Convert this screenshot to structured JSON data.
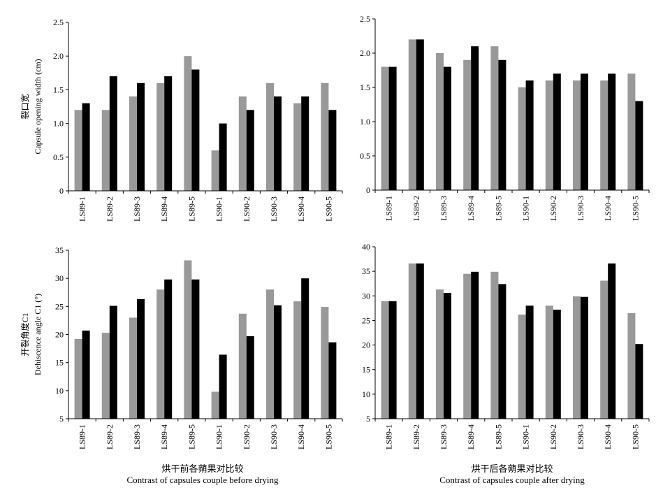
{
  "colors": {
    "series_a": "#999999",
    "series_b": "#000000",
    "axis": "#000000"
  },
  "chart_data": [
    {
      "type": "bar",
      "panel": "top-left",
      "ylabel_zh": "裂口宽",
      "ylabel_en": "Capsule opening width (cm)",
      "ylim": [
        0,
        2.5
      ],
      "yticks": [
        "0",
        "0.5",
        "1.0",
        "1.5",
        "2.0",
        "2.5"
      ],
      "categories": [
        "LS89-1",
        "LS89-2",
        "LS89-3",
        "LS89-4",
        "LS89-5",
        "LS90-1",
        "LS90-2",
        "LS90-3",
        "LS90-4",
        "LS90-5"
      ],
      "series": [
        {
          "values": [
            1.2,
            1.2,
            1.4,
            1.6,
            2.0,
            0.6,
            1.4,
            1.6,
            1.3,
            1.6
          ]
        },
        {
          "values": [
            1.3,
            1.7,
            1.6,
            1.7,
            1.8,
            1.0,
            1.2,
            1.4,
            1.4,
            1.2
          ]
        }
      ]
    },
    {
      "type": "bar",
      "panel": "top-right",
      "ylabel_zh": "",
      "ylabel_en": "",
      "ylim": [
        0,
        2.5
      ],
      "yticks": [
        "0",
        "0.5",
        "1.0",
        "1.5",
        "2.0",
        "2.5"
      ],
      "categories": [
        "LS89-1",
        "LS89-2",
        "LS89-3",
        "LS89-4",
        "LS89-5",
        "LS90-1",
        "LS90-2",
        "LS90-3",
        "LS90-4",
        "LS90-5"
      ],
      "series": [
        {
          "values": [
            1.8,
            2.2,
            2.0,
            1.9,
            2.1,
            1.5,
            1.6,
            1.6,
            1.6,
            1.7
          ]
        },
        {
          "values": [
            1.8,
            2.2,
            1.8,
            2.1,
            1.9,
            1.6,
            1.7,
            1.7,
            1.7,
            1.3
          ]
        }
      ]
    },
    {
      "type": "bar",
      "panel": "bottom-left",
      "ylabel_zh": "开裂角度C1",
      "ylabel_en": "Dehiscence angle C1 (°)",
      "ylim": [
        5,
        35
      ],
      "yticks": [
        "5",
        "10",
        "15",
        "20",
        "25",
        "30",
        "35"
      ],
      "categories": [
        "LS89-1",
        "LS89-2",
        "LS89-3",
        "LS89-4",
        "LS89-5",
        "LS90-1",
        "LS90-2",
        "LS90-3",
        "LS90-4",
        "LS90-5"
      ],
      "series": [
        {
          "values": [
            19.2,
            20.3,
            23.0,
            28.0,
            33.2,
            9.8,
            23.7,
            28.0,
            25.9,
            24.9
          ]
        },
        {
          "values": [
            20.7,
            25.1,
            26.3,
            29.8,
            29.8,
            16.4,
            19.7,
            25.2,
            30.0,
            18.6
          ]
        }
      ]
    },
    {
      "type": "bar",
      "panel": "bottom-right",
      "ylabel_zh": "",
      "ylabel_en": "",
      "ylim": [
        5,
        40
      ],
      "yticks": [
        "5",
        "10",
        "15",
        "20",
        "25",
        "30",
        "35",
        "40"
      ],
      "categories": [
        "LS89-1",
        "LS89-2",
        "LS89-3",
        "LS89-4",
        "LS89-5",
        "LS90-1",
        "LS90-2",
        "LS90-3",
        "LS90-4",
        "LS90-5"
      ],
      "series": [
        {
          "values": [
            28.9,
            36.6,
            31.3,
            34.5,
            34.9,
            26.2,
            28.0,
            29.9,
            33.1,
            26.5
          ]
        },
        {
          "values": [
            28.9,
            36.6,
            30.6,
            34.9,
            32.4,
            28.0,
            27.2,
            29.8,
            36.6,
            20.2
          ]
        }
      ]
    }
  ],
  "captions": {
    "left_zh": "烘干前各蒴果对比较",
    "left_en": "Contrast of capsules couple before drying",
    "right_zh": "烘干后各蒴果对比较",
    "right_en": "Contrast of capsules couple after drying"
  }
}
